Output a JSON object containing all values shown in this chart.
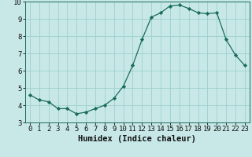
{
  "x": [
    0,
    1,
    2,
    3,
    4,
    5,
    6,
    7,
    8,
    9,
    10,
    11,
    12,
    13,
    14,
    15,
    16,
    17,
    18,
    19,
    20,
    21,
    22,
    23
  ],
  "y": [
    4.6,
    4.3,
    4.2,
    3.8,
    3.8,
    3.5,
    3.6,
    3.8,
    4.0,
    4.4,
    5.1,
    6.3,
    7.8,
    9.1,
    9.35,
    9.75,
    9.8,
    9.6,
    9.35,
    9.3,
    9.35,
    7.8,
    6.9,
    6.3
  ],
  "line_color": "#1a6b5a",
  "marker": "D",
  "marker_size": 2.2,
  "bg_color": "#c8e8e8",
  "grid_color": "#9dcfcf",
  "xlabel": "Humidex (Indice chaleur)",
  "xlim": [
    -0.5,
    23.5
  ],
  "ylim": [
    3,
    10
  ],
  "yticks": [
    3,
    4,
    5,
    6,
    7,
    8,
    9,
    10
  ],
  "xticks": [
    0,
    1,
    2,
    3,
    4,
    5,
    6,
    7,
    8,
    9,
    10,
    11,
    12,
    13,
    14,
    15,
    16,
    17,
    18,
    19,
    20,
    21,
    22,
    23
  ],
  "xtick_labels": [
    "0",
    "1",
    "2",
    "3",
    "4",
    "5",
    "6",
    "7",
    "8",
    "9",
    "10",
    "11",
    "12",
    "13",
    "14",
    "15",
    "16",
    "17",
    "18",
    "19",
    "20",
    "21",
    "22",
    "23"
  ],
  "tick_fontsize": 6.5,
  "xlabel_fontsize": 7.5
}
